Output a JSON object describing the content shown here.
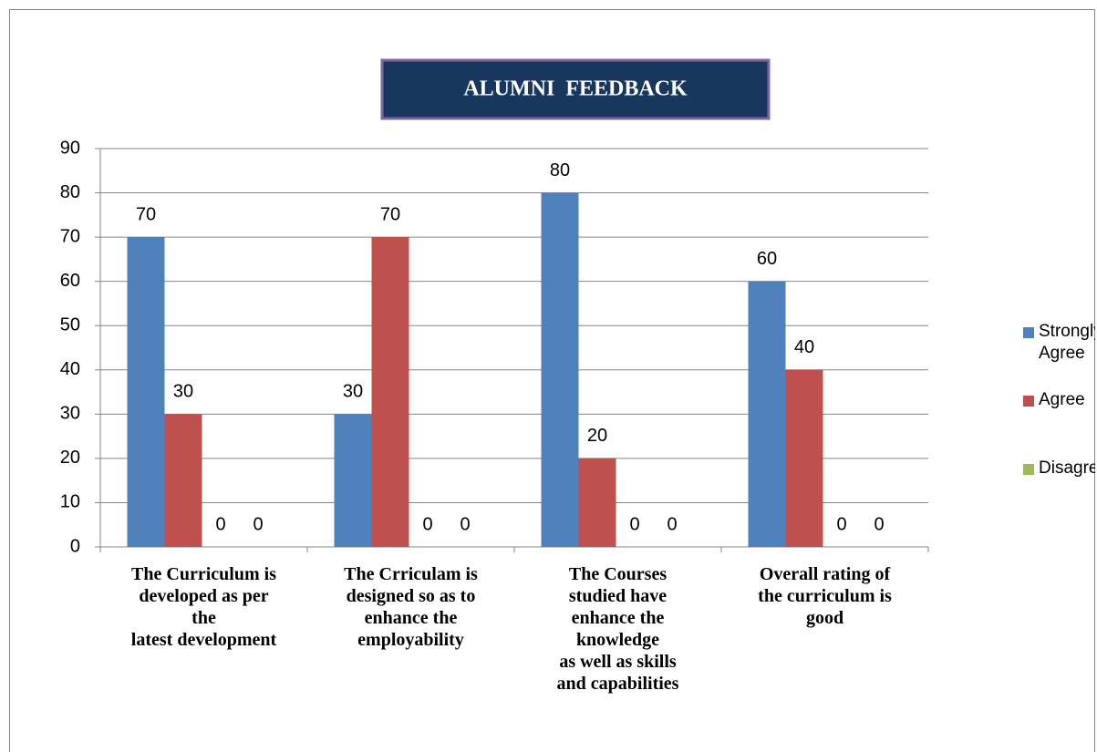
{
  "chart_data": {
    "type": "bar",
    "title": "ALUMNI  FEEDBACK",
    "categories": [
      "The Curriculum is\ndeveloped as per\nthe\nlatest development",
      "The Crriculam is\ndesigned so as to\nenhance the\nemployability",
      "The Courses\nstudied have\nenhance the\nknowledge\nas well as skills\nand capabilities",
      "Overall rating of\nthe curriculum is\ngood"
    ],
    "series": [
      {
        "name": "Strongly Agree",
        "color": "#4f81bd",
        "values": [
          70,
          30,
          80,
          60
        ]
      },
      {
        "name": "Agree",
        "color": "#c0504d",
        "values": [
          30,
          70,
          20,
          40
        ]
      },
      {
        "name": "Disagree",
        "color": "#9bbb59",
        "values": [
          0,
          0,
          0,
          0
        ]
      },
      {
        "name": null,
        "color": "#8064a2",
        "values": [
          0,
          0,
          0,
          0
        ]
      }
    ],
    "ylim": [
      0,
      90
    ],
    "yticks": [
      0,
      10,
      20,
      30,
      40,
      50,
      60,
      70,
      80,
      90
    ],
    "grid": true,
    "legend": "right"
  }
}
